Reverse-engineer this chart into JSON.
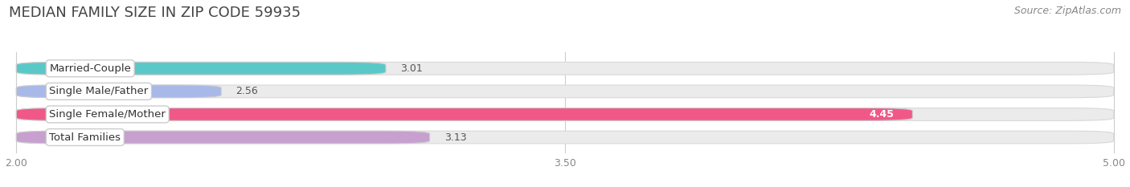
{
  "title": "MEDIAN FAMILY SIZE IN ZIP CODE 59935",
  "source": "Source: ZipAtlas.com",
  "categories": [
    "Married-Couple",
    "Single Male/Father",
    "Single Female/Mother",
    "Total Families"
  ],
  "values": [
    3.01,
    2.56,
    4.45,
    3.13
  ],
  "bar_colors": [
    "#5bc8c8",
    "#a8b8e8",
    "#f05888",
    "#c8a0d0"
  ],
  "label_colors": [
    "#333333",
    "#333333",
    "#ffffff",
    "#333333"
  ],
  "xlim": [
    2.0,
    5.0
  ],
  "xticks": [
    2.0,
    3.5,
    5.0
  ],
  "background_color": "#ffffff",
  "bar_bg_color": "#ebebeb",
  "title_fontsize": 13,
  "source_fontsize": 9,
  "label_fontsize": 9.5,
  "value_fontsize": 9,
  "tick_fontsize": 9,
  "bar_height": 0.55
}
